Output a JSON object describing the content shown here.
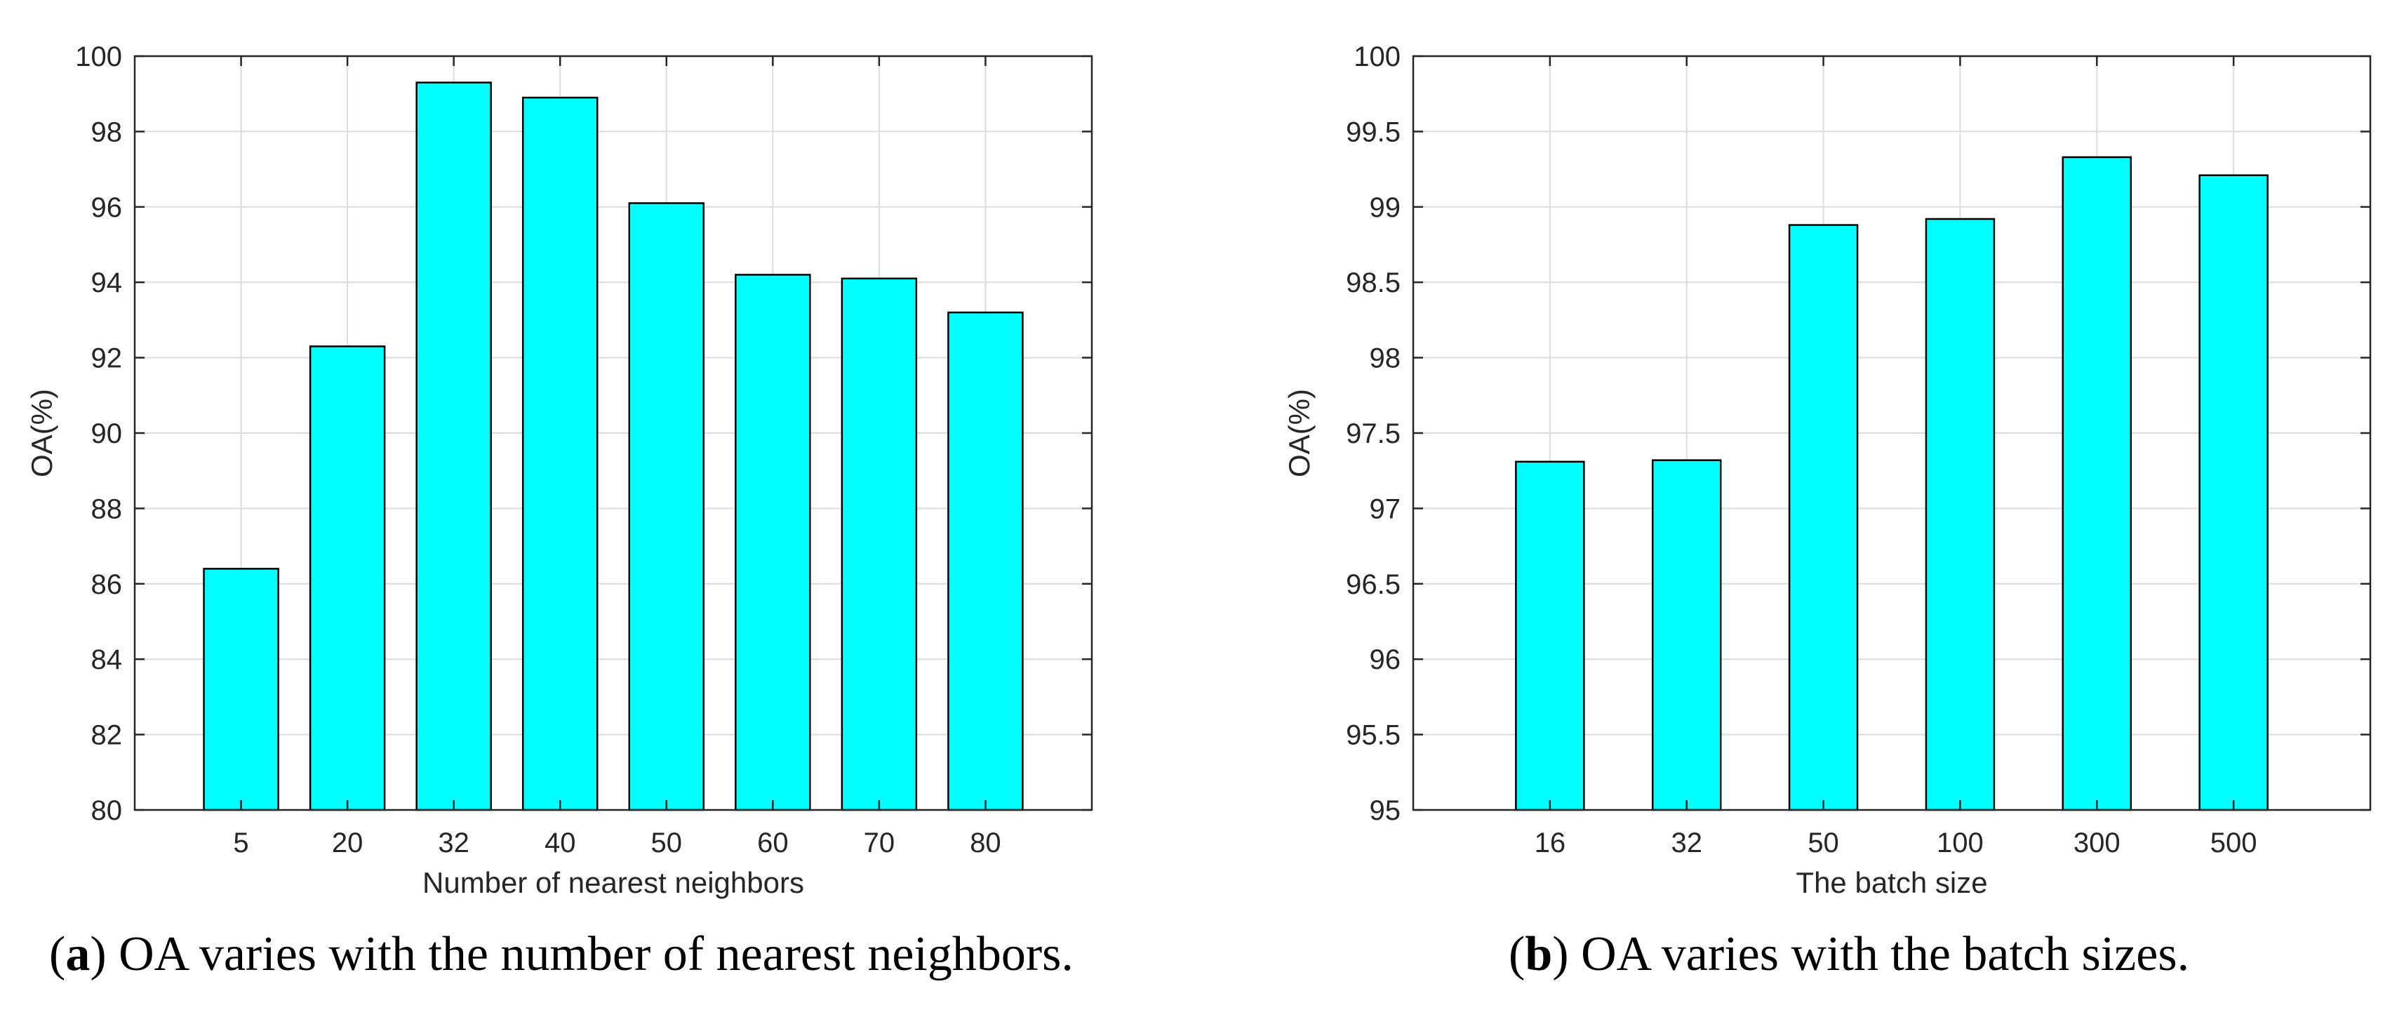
{
  "colors": {
    "bar_fill": "#00ffff",
    "bar_stroke": "#000000",
    "grid": "#dcdcdc",
    "axis": "#262626"
  },
  "chart_data": [
    {
      "type": "bar",
      "title": "",
      "categories": [
        "5",
        "20",
        "32",
        "40",
        "50",
        "60",
        "70",
        "80"
      ],
      "values": [
        86.4,
        92.3,
        99.3,
        98.9,
        96.1,
        94.2,
        94.1,
        93.2
      ],
      "xlabel": "Number of nearest neighbors",
      "ylabel": "OA(%)",
      "ylim": [
        80,
        100
      ],
      "yticks": [
        "80",
        "82",
        "84",
        "86",
        "88",
        "90",
        "92",
        "94",
        "96",
        "98",
        "100"
      ],
      "grid": true,
      "caption_label": "a",
      "caption_text": "OA varies with the number of nearest neighbors."
    },
    {
      "type": "bar",
      "title": "",
      "categories": [
        "16",
        "32",
        "50",
        "100",
        "300",
        "500"
      ],
      "values": [
        97.31,
        97.32,
        98.88,
        98.92,
        99.33,
        99.21
      ],
      "xlabel": "The batch size",
      "ylabel": "OA(%)",
      "ylim": [
        95,
        100
      ],
      "yticks": [
        "95",
        "95.5",
        "96",
        "96.5",
        "97",
        "97.5",
        "98",
        "98.5",
        "99",
        "99.5",
        "100"
      ],
      "grid": true,
      "caption_label": "b",
      "caption_text": "OA varies with the batch sizes."
    }
  ]
}
